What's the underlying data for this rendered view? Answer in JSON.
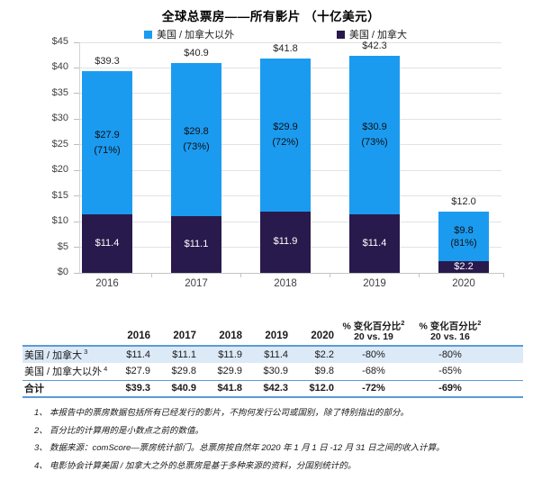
{
  "title": "全球总票房——所有影片 （十亿美元）",
  "legend": [
    {
      "label": "美国 / 加拿大以外",
      "color": "#1B9BF0"
    },
    {
      "label": "美国 / 加拿大",
      "color": "#291A4D"
    }
  ],
  "chart_data": {
    "type": "bar",
    "stacked": true,
    "title": "全球总票房——所有影片 （十亿美元）",
    "unit": "十亿美元",
    "categories": [
      "2016",
      "2017",
      "2018",
      "2019",
      "2020"
    ],
    "series": [
      {
        "name": "美国 / 加拿大",
        "color": "#291A4D",
        "values": [
          11.4,
          11.1,
          11.9,
          11.4,
          2.2
        ],
        "labels": [
          "$11.4",
          "$11.1",
          "$11.9",
          "$11.4",
          "$2.2"
        ]
      },
      {
        "name": "美国 / 加拿大以外",
        "color": "#1B9BF0",
        "values": [
          27.9,
          29.8,
          29.9,
          30.9,
          9.8
        ],
        "labels": [
          "$27.9",
          "$29.8",
          "$29.9",
          "$30.9",
          "$9.8"
        ],
        "pct_labels": [
          "(71%)",
          "(73%)",
          "(72%)",
          "(73%)",
          "(81%)"
        ]
      }
    ],
    "totals": [
      39.3,
      40.9,
      41.8,
      42.3,
      12.0
    ],
    "total_labels": [
      "$39.3",
      "$40.9",
      "$41.8",
      "$42.3",
      "$12.0"
    ],
    "ylim": [
      0,
      45
    ],
    "ytick_step": 5,
    "ytick_labels": [
      "$0",
      "$5",
      "$10",
      "$15",
      "$20",
      "$25",
      "$30",
      "$35",
      "$40",
      "$45"
    ],
    "grid": true,
    "legend_position": "top"
  },
  "table": {
    "year_headers": [
      "2016",
      "2017",
      "2018",
      "2019",
      "2020"
    ],
    "pct_headers": [
      {
        "title": "% 变化百分比",
        "sup": "2",
        "subtitle": "20 vs. 19"
      },
      {
        "title": "% 变化百分比",
        "sup": "2",
        "subtitle": "20 vs. 16"
      }
    ],
    "rows": [
      {
        "label": "美国 / 加拿大",
        "sup": "3",
        "values": [
          "$11.4",
          "$11.1",
          "$11.9",
          "$11.4",
          "$2.2"
        ],
        "pct": [
          "-80%",
          "-80%"
        ],
        "highlight": true,
        "bold": false
      },
      {
        "label": "美国 / 加拿大以外",
        "sup": "4",
        "values": [
          "$27.9",
          "$29.8",
          "$29.9",
          "$30.9",
          "$9.8"
        ],
        "pct": [
          "-68%",
          "-65%"
        ],
        "highlight": false,
        "bold": false
      },
      {
        "label": "合计",
        "sup": "",
        "values": [
          "$39.3",
          "$40.9",
          "$41.8",
          "$42.3",
          "$12.0"
        ],
        "pct": [
          "-72%",
          "-69%"
        ],
        "highlight": false,
        "bold": true
      }
    ]
  },
  "footnotes": [
    {
      "num": "1、",
      "text": "本报告中的票房数据包括所有已经发行的影片，不拘何发行公司或国别，除了特别指出的部分。"
    },
    {
      "num": "2、",
      "text": "百分比的计算用的是小数点之前的数值。"
    },
    {
      "num": "3、",
      "text": "数据来源：comScore—票房统计部门。总票房按自然年 2020 年 1 月 1 日 -12 月 31 日之间的收入计算。"
    },
    {
      "num": "4、",
      "text": "电影协会计算美国 / 加拿大之外的总票房是基于多种来源的资料，分国别统计的。"
    }
  ],
  "colors": {
    "blue": "#1B9BF0",
    "navy": "#291A4D",
    "table_border": "#5B9BD5",
    "row_highlight": "#DCE9F7",
    "gridline": "#E2E2E2",
    "axis": "#C4C4C4"
  }
}
